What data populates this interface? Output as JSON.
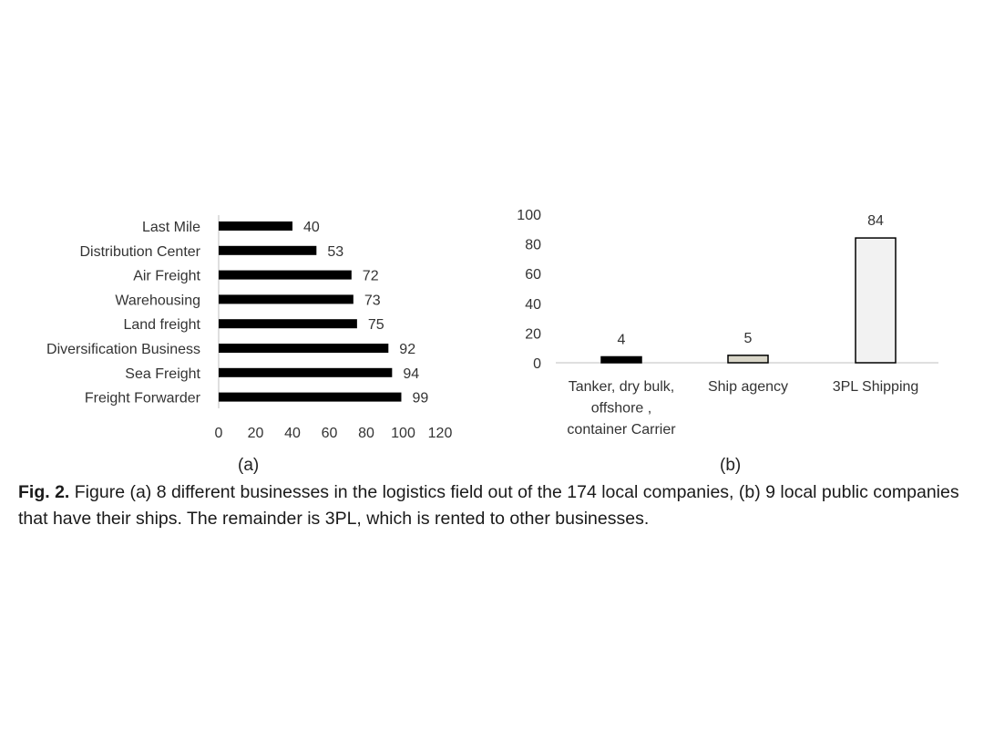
{
  "chart_data": [
    {
      "type": "bar",
      "orientation": "horizontal",
      "categories": [
        "Last Mile",
        "Distribution Center",
        "Air Freight",
        "Warehousing",
        "Land freight",
        "Diversification Business",
        "Sea Freight",
        "Freight Forwarder"
      ],
      "values": [
        40,
        53,
        72,
        73,
        75,
        92,
        94,
        99
      ],
      "xlim": [
        0,
        120
      ],
      "xticks": [
        0,
        20,
        40,
        60,
        80,
        100,
        120
      ],
      "bar_color": "#000000",
      "grid": false,
      "panel_label": "(a)"
    },
    {
      "type": "bar",
      "orientation": "vertical",
      "categories": [
        [
          "Tanker, dry bulk,",
          "offshore ,",
          "container Carrier"
        ],
        [
          "Ship agency"
        ],
        [
          "3PL Shipping"
        ]
      ],
      "values": [
        4,
        5,
        84
      ],
      "ylim": [
        0,
        100
      ],
      "yticks": [
        0,
        20,
        40,
        60,
        80,
        100
      ],
      "bar_colors": [
        "#000000",
        "#d9d6c8",
        "#f2f2f2"
      ],
      "grid": false,
      "panel_label": "(b)"
    }
  ],
  "caption": {
    "label": "Fig. 2.",
    "text": " Figure (a) 8 different businesses in the logistics field out of the 174 local companies, (b) 9 local public companies that have their ships. The remainder is 3PL, which is rented to other businesses."
  }
}
